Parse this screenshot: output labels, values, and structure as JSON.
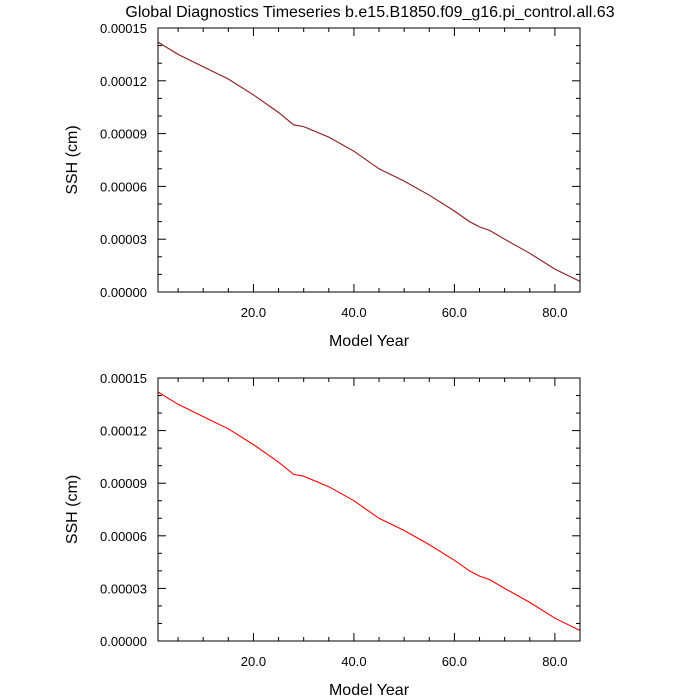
{
  "figure": {
    "title": "Global Diagnostics Timeseries b.e15.B1850.f09_g16.pi_control.all.63"
  },
  "chart_data": [
    {
      "type": "line",
      "title": "Global Diagnostics Timeseries b.e15.B1850.f09_g16.pi_control.all.63",
      "xlabel": "Model Year",
      "ylabel": "SSH (cm)",
      "xlim": [
        1,
        85
      ],
      "ylim": [
        0.0,
        0.00015
      ],
      "xticks": [
        20,
        40,
        60,
        80
      ],
      "xtick_labels": [
        "20.0",
        "40.0",
        "60.0",
        "80.0"
      ],
      "yticks": [
        0.0,
        3e-05,
        6e-05,
        9e-05,
        0.00012,
        0.00015
      ],
      "ytick_labels": [
        "0.00000",
        "0.00003",
        "0.00006",
        "0.00009",
        "0.00012",
        "0.00015"
      ],
      "grid": false,
      "series": [
        {
          "color": "#8b1a1a",
          "x": [
            1,
            5,
            10,
            15,
            20,
            25,
            28,
            30,
            35,
            40,
            45,
            50,
            55,
            60,
            63,
            65,
            67,
            70,
            75,
            80,
            85
          ],
          "y": [
            0.000142,
            0.000135,
            0.000128,
            0.000121,
            0.000112,
            0.000102,
            9.5e-05,
            9.4e-05,
            8.8e-05,
            8e-05,
            7e-05,
            6.3e-05,
            5.5e-05,
            4.6e-05,
            4e-05,
            3.7e-05,
            3.5e-05,
            3e-05,
            2.2e-05,
            1.3e-05,
            6e-06
          ]
        }
      ]
    },
    {
      "type": "line",
      "title": "",
      "xlabel": "Model Year",
      "ylabel": "SSH (cm)",
      "xlim": [
        1,
        85
      ],
      "ylim": [
        0.0,
        0.00015
      ],
      "xticks": [
        20,
        40,
        60,
        80
      ],
      "xtick_labels": [
        "20.0",
        "40.0",
        "60.0",
        "80.0"
      ],
      "yticks": [
        0.0,
        3e-05,
        6e-05,
        9e-05,
        0.00012,
        0.00015
      ],
      "ytick_labels": [
        "0.00000",
        "0.00003",
        "0.00006",
        "0.00009",
        "0.00012",
        "0.00015"
      ],
      "grid": false,
      "series": [
        {
          "color": "#ff0000",
          "x": [
            1,
            5,
            10,
            15,
            20,
            25,
            28,
            30,
            35,
            40,
            45,
            50,
            55,
            60,
            63,
            65,
            67,
            70,
            75,
            80,
            85
          ],
          "y": [
            0.000142,
            0.000135,
            0.000128,
            0.000121,
            0.000112,
            0.000102,
            9.5e-05,
            9.4e-05,
            8.8e-05,
            8e-05,
            7e-05,
            6.3e-05,
            5.5e-05,
            4.6e-05,
            4e-05,
            3.7e-05,
            3.5e-05,
            3e-05,
            2.2e-05,
            1.3e-05,
            6e-06
          ]
        }
      ]
    }
  ]
}
